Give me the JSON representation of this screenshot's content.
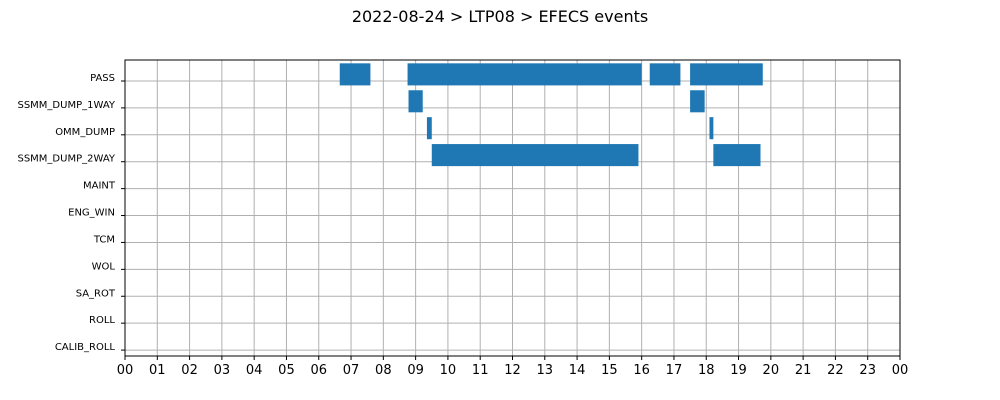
{
  "chart_data": {
    "type": "gantt",
    "title": "2022-08-24 > LTP08 > EFECS events",
    "x_tick_labels": [
      "00",
      "01",
      "02",
      "03",
      "04",
      "05",
      "06",
      "07",
      "08",
      "09",
      "10",
      "11",
      "12",
      "13",
      "14",
      "15",
      "16",
      "17",
      "18",
      "19",
      "20",
      "21",
      "22",
      "23",
      "00"
    ],
    "xlim_hours": [
      0,
      24
    ],
    "categories": [
      "PASS",
      "SSMM_DUMP_1WAY",
      "OMM_DUMP",
      "SSMM_DUMP_2WAY",
      "MAINT",
      "ENG_WIN",
      "TCM",
      "WOL",
      "SA_ROT",
      "ROLL",
      "CALIB_ROLL"
    ],
    "grid": true,
    "bar_color": "#1f77b4",
    "events": [
      {
        "category": "PASS",
        "start_hour": 6.65,
        "end_hour": 7.6
      },
      {
        "category": "PASS",
        "start_hour": 8.75,
        "end_hour": 16.0
      },
      {
        "category": "PASS",
        "start_hour": 16.25,
        "end_hour": 17.2
      },
      {
        "category": "PASS",
        "start_hour": 17.5,
        "end_hour": 19.75
      },
      {
        "category": "SSMM_DUMP_1WAY",
        "start_hour": 8.78,
        "end_hour": 9.22
      },
      {
        "category": "SSMM_DUMP_1WAY",
        "start_hour": 17.5,
        "end_hour": 17.95
      },
      {
        "category": "OMM_DUMP",
        "start_hour": 9.35,
        "end_hour": 9.5
      },
      {
        "category": "OMM_DUMP",
        "start_hour": 18.1,
        "end_hour": 18.22
      },
      {
        "category": "SSMM_DUMP_2WAY",
        "start_hour": 9.5,
        "end_hour": 15.9
      },
      {
        "category": "SSMM_DUMP_2WAY",
        "start_hour": 18.22,
        "end_hour": 19.68
      }
    ]
  }
}
